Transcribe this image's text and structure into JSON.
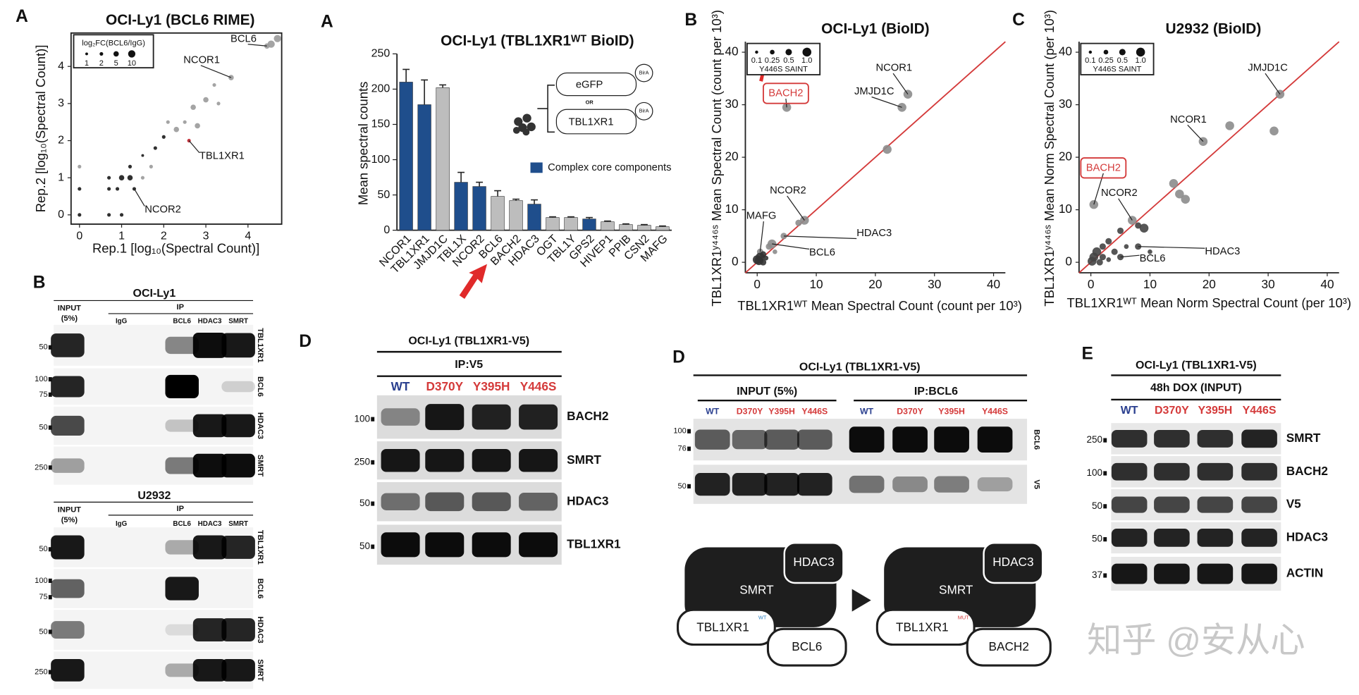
{
  "panel_letters": [
    "A",
    "A",
    "B",
    "C",
    "B",
    "D",
    "D",
    "E"
  ],
  "chart_data": [
    {
      "type": "scatter",
      "title": "OCI-Ly1 (BCL6 RIME)",
      "x_label": "Rep.1 [log₁₀(Spectral Count)]",
      "y_label": "Rep.2 [log₁₀(Spectral Count)]",
      "xlim": [
        -0.2,
        4.8
      ],
      "ylim": [
        -0.25,
        4.9
      ],
      "xticks": [
        0,
        1,
        2,
        3,
        4
      ],
      "yticks": [
        0,
        1,
        2,
        3,
        4
      ],
      "x": [
        4.55,
        4.7,
        4.45,
        3.6,
        2.6,
        3.2,
        3.0,
        2.7,
        2.5,
        2.3,
        2.0,
        1.8,
        1.5,
        1.2,
        1.0,
        1.2,
        0.9,
        1.3,
        0.7,
        0.7,
        0.7,
        0,
        0,
        0,
        1.0,
        1.5,
        2.8,
        3.3,
        2.1,
        1.7
      ],
      "values": [
        4.6,
        4.75,
        4.55,
        3.7,
        2.0,
        3.5,
        3.1,
        2.9,
        2.5,
        2.3,
        2.1,
        1.8,
        1.6,
        1.3,
        1.0,
        1.0,
        0.7,
        0.7,
        1.0,
        0.7,
        0,
        0,
        0.7,
        1.3,
        0,
        1.0,
        2.4,
        3.0,
        2.5,
        1.3
      ],
      "sizes": [
        10,
        10,
        5,
        5,
        2,
        2,
        5,
        5,
        2,
        5,
        2,
        2,
        1,
        2,
        5,
        5,
        2,
        2,
        2,
        2,
        2,
        2,
        2,
        2,
        2,
        2,
        5,
        2,
        2,
        2
      ],
      "point_colors": [
        "#9a9a9a",
        "#9a9a9a",
        "#9a9a9a",
        "#9a9a9a",
        "#c0202a",
        "#9a9a9a",
        "#9a9a9a",
        "#9a9a9a",
        "#9a9a9a",
        "#9a9a9a",
        "#1a1a1a",
        "#1a1a1a",
        "#1a1a1a",
        "#1a1a1a",
        "#1a1a1a",
        "#1a1a1a",
        "#1a1a1a",
        "#1a1a1a",
        "#1a1a1a",
        "#1a1a1a",
        "#1a1a1a",
        "#1a1a1a",
        "#1a1a1a",
        "#9a9a9a",
        "#1a1a1a",
        "#9a9a9a",
        "#9a9a9a",
        "#9a9a9a",
        "#9a9a9a",
        "#9a9a9a"
      ],
      "size_legend": {
        "title": "log₂FC(BCL6/IgG)",
        "values": [
          1,
          2,
          5,
          10
        ]
      },
      "annotations": [
        {
          "text": "BCL6",
          "x": 4.45,
          "y": 4.55,
          "color": "#111111"
        },
        {
          "text": "NCOR1",
          "x": 3.6,
          "y": 3.7,
          "color": "#111111"
        },
        {
          "text": "TBL1XR1",
          "x": 2.6,
          "y": 2.0,
          "color": "#111111"
        },
        {
          "text": "NCOR2",
          "x": 1.3,
          "y": 0.7,
          "color": "#111111"
        }
      ]
    },
    {
      "type": "bar",
      "title": "OCI-Ly1 (TBL1XR1ᵂᵀ BioID)",
      "y_label": "Mean spectral counts",
      "categories": [
        "NCOR1",
        "TBL1XR1",
        "JMJD1C",
        "TBL1X",
        "NCOR2",
        "BCL6",
        "BACH2",
        "HDAC3",
        "OGT",
        "TBL1Y",
        "GPS2",
        "HIVEP1",
        "PPIB",
        "CSN2",
        "MAFG"
      ],
      "values": [
        210,
        178,
        202,
        68,
        62,
        48,
        42,
        37,
        18,
        18,
        16,
        12,
        8,
        7,
        5
      ],
      "errors": [
        18,
        35,
        4,
        14,
        6,
        8,
        2,
        6,
        1,
        1,
        2,
        1,
        1,
        1,
        1
      ],
      "colors": [
        "#1f4e8c",
        "#1f4e8c",
        "#bdbdbd",
        "#1f4e8c",
        "#1f4e8c",
        "#bdbdbd",
        "#bdbdbd",
        "#1f4e8c",
        "#bdbdbd",
        "#bdbdbd",
        "#1f4e8c",
        "#bdbdbd",
        "#bdbdbd",
        "#bdbdbd",
        "#bdbdbd"
      ],
      "ylim": [
        0,
        250
      ],
      "yticks": [
        0,
        50,
        100,
        150,
        200,
        250
      ],
      "legend": {
        "label": "Complex core components",
        "color": "#1f4e8c"
      },
      "inset": {
        "top": "eGFP",
        "or": "OR",
        "bottom": "TBL1XR1",
        "tag": "BirA"
      }
    },
    {
      "type": "scatter",
      "title": "OCI-Ly1 (BioID)",
      "x_label": "TBL1XR1ᵂᵀ Mean Spectral Count (count per 10³)",
      "y_label": "TBL1XR1ʸ⁴⁴⁶ˢ Mean Spectral Count (count per 10³)",
      "xlim": [
        -2,
        42
      ],
      "ylim": [
        -2,
        42
      ],
      "xticks": [
        0,
        10,
        20,
        30,
        40
      ],
      "yticks": [
        0,
        10,
        20,
        30,
        40
      ],
      "diagonal": "#d43a3a",
      "x": [
        25.5,
        24.5,
        5,
        22,
        8,
        4.5,
        2.5,
        0.5,
        0.5,
        1,
        0,
        1.5,
        2,
        0.3,
        1,
        3,
        7
      ],
      "values": [
        32,
        29.5,
        29.5,
        21.5,
        8,
        5,
        3.5,
        2,
        1,
        1.5,
        0.5,
        0.8,
        3,
        0.3,
        0,
        2,
        7.5
      ],
      "sizes": [
        1,
        1,
        1,
        1,
        1,
        0.5,
        1,
        0.5,
        1,
        0.5,
        1,
        0.25,
        0.5,
        1,
        0.5,
        0.25,
        0.5
      ],
      "point_colors": [
        "#8c8c8c",
        "#8c8c8c",
        "#8c8c8c",
        "#8c8c8c",
        "#8c8c8c",
        "#8c8c8c",
        "#8c8c8c",
        "#8c8c8c",
        "#333333",
        "#333333",
        "#333333",
        "#333333",
        "#8c8c8c",
        "#333333",
        "#333333",
        "#8c8c8c",
        "#8c8c8c"
      ],
      "size_legend": {
        "title": "Y446S SAINT",
        "values": [
          0.1,
          0.25,
          0.5,
          {
            "value": 1,
            "label": "1.0"
          }
        ]
      },
      "annotations": [
        {
          "text": "NCOR1",
          "x": 25.5,
          "y": 32,
          "color": "#111111"
        },
        {
          "text": "JMJD1C",
          "x": 24.5,
          "y": 29.5,
          "color": "#111111"
        },
        {
          "text": "BACH2",
          "x": 5,
          "y": 29.5,
          "color": "#d43a3a"
        },
        {
          "text": "NCOR2",
          "x": 8,
          "y": 8,
          "color": "#111111"
        },
        {
          "text": "MAFG",
          "x": 0.5,
          "y": 2,
          "color": "#111111"
        },
        {
          "text": "HDAC3",
          "x": 4.5,
          "y": 5,
          "color": "#111111"
        },
        {
          "text": "BCL6",
          "x": 2.5,
          "y": 3.5,
          "color": "#111111"
        }
      ]
    },
    {
      "type": "scatter",
      "title": "U2932 (BioID)",
      "x_label": "TBL1XR1ᵂᵀ Mean Norm Spectral Count (per 10³)",
      "y_label": "TBL1XR1ʸ⁴⁴⁶ˢ Mean Norm Spectral Count (per 10³)",
      "xlim": [
        -2,
        42
      ],
      "ylim": [
        -2,
        42
      ],
      "xticks": [
        0,
        10,
        20,
        30,
        40
      ],
      "yticks": [
        0,
        10,
        20,
        30,
        40
      ],
      "diagonal": "#d43a3a",
      "x": [
        32,
        31,
        23.5,
        19,
        14,
        15,
        16,
        0.5,
        7,
        8,
        9,
        5,
        3,
        2,
        1,
        0.5,
        2,
        4,
        6,
        8,
        5,
        3,
        0.2,
        1.5,
        10
      ],
      "values": [
        32,
        25,
        26,
        23,
        15,
        13,
        12,
        11,
        8,
        7,
        6.5,
        6,
        4,
        3,
        2,
        1,
        1,
        2,
        3,
        3,
        1,
        0.5,
        0.2,
        0,
        2
      ],
      "sizes": [
        1,
        1,
        1,
        1,
        1,
        1,
        1,
        1,
        1,
        0.5,
        1,
        0.5,
        0.5,
        0.5,
        1,
        1,
        0.5,
        0.5,
        0.25,
        0.5,
        0.5,
        0.25,
        1,
        0.5,
        0.25
      ],
      "point_colors": [
        "#8c8c8c",
        "#8c8c8c",
        "#8c8c8c",
        "#8c8c8c",
        "#8c8c8c",
        "#8c8c8c",
        "#8c8c8c",
        "#8c8c8c",
        "#8c8c8c",
        "#444444",
        "#444444",
        "#444444",
        "#444444",
        "#444444",
        "#444444",
        "#444444",
        "#444444",
        "#444444",
        "#444444",
        "#444444",
        "#444444",
        "#444444",
        "#444444",
        "#444444",
        "#444444"
      ],
      "size_legend": {
        "title": "Y446S SAINT",
        "values": [
          0.1,
          0.25,
          0.5,
          {
            "value": 1,
            "label": "1.0"
          }
        ]
      },
      "annotations": [
        {
          "text": "JMJD1C",
          "x": 32,
          "y": 32,
          "color": "#111111"
        },
        {
          "text": "NCOR1",
          "x": 19,
          "y": 23,
          "color": "#111111"
        },
        {
          "text": "BACH2",
          "x": 0.5,
          "y": 11,
          "color": "#d43a3a"
        },
        {
          "text": "NCOR2",
          "x": 7,
          "y": 8,
          "color": "#111111"
        },
        {
          "text": "HDAC3",
          "x": 8,
          "y": 3,
          "color": "#111111"
        },
        {
          "text": "BCL6",
          "x": 5,
          "y": 1,
          "color": "#111111"
        }
      ]
    }
  ],
  "blots": [
    {
      "title": "OCI-Ly1",
      "input_label": [
        "INPUT",
        "(5%)"
      ],
      "ip_label": "IP",
      "lanes": [
        "IgG",
        "BCL6",
        "HDAC3",
        "SMRT"
      ],
      "rows": [
        {
          "label": "TBL1XR1",
          "markers": [
            "50"
          ]
        },
        {
          "label": "BCL6",
          "markers": [
            "100",
            "75"
          ]
        },
        {
          "label": "HDAC3",
          "markers": [
            "50"
          ]
        },
        {
          "label": "SMRT",
          "markers": [
            "250"
          ]
        }
      ]
    },
    {
      "title": "U2932",
      "input_label": [
        "INPUT",
        "(5%)"
      ],
      "ip_label": "IP",
      "lanes": [
        "IgG",
        "BCL6",
        "HDAC3",
        "SMRT"
      ],
      "rows": [
        {
          "label": "TBL1XR1",
          "markers": [
            "50"
          ]
        },
        {
          "label": "BCL6",
          "markers": [
            "100",
            "75"
          ]
        },
        {
          "label": "HDAC3",
          "markers": [
            "50"
          ]
        },
        {
          "label": "SMRT",
          "markers": [
            "250"
          ]
        }
      ]
    },
    {
      "title": "OCI-Ly1 (TBL1XR1-V5)",
      "ip_label": "IP:V5",
      "lanes": [
        "WT",
        "D370Y",
        "Y395H",
        "Y446S"
      ],
      "lane_colors": [
        "#2a3f8f",
        "#d43a3a",
        "#d43a3a",
        "#d43a3a"
      ],
      "rows": [
        {
          "label": "BACH2",
          "markers": [
            "100"
          ]
        },
        {
          "label": "SMRT",
          "markers": [
            "250"
          ]
        },
        {
          "label": "HDAC3",
          "markers": [
            "50"
          ]
        },
        {
          "label": "TBL1XR1",
          "markers": [
            "50"
          ]
        }
      ]
    },
    {
      "title": "OCI-Ly1 (TBL1XR1-V5)",
      "group_labels": [
        "INPUT (5%)",
        "IP:BCL6"
      ],
      "lanes": [
        "WT",
        "D370Y",
        "Y395H",
        "Y446S",
        "WT",
        "D370Y",
        "Y395H",
        "Y446S"
      ],
      "lane_colors": [
        "#2a3f8f",
        "#d43a3a",
        "#d43a3a",
        "#d43a3a",
        "#2a3f8f",
        "#d43a3a",
        "#d43a3a",
        "#d43a3a"
      ],
      "rows": [
        {
          "label": "BCL6",
          "markers": [
            "100",
            "76"
          ]
        },
        {
          "label": "V5",
          "markers": [
            "50"
          ]
        }
      ]
    },
    {
      "title": "OCI-Ly1 (TBL1XR1-V5)",
      "ip_label": "48h DOX (INPUT)",
      "lanes": [
        "WT",
        "D370Y",
        "Y395H",
        "Y446S"
      ],
      "lane_colors": [
        "#2a3f8f",
        "#d43a3a",
        "#d43a3a",
        "#d43a3a"
      ],
      "rows": [
        {
          "label": "SMRT",
          "markers": [
            "250"
          ]
        },
        {
          "label": "BACH2",
          "markers": [
            "100"
          ]
        },
        {
          "label": "V5",
          "markers": [
            "50"
          ]
        },
        {
          "label": "HDAC3",
          "markers": [
            "50"
          ]
        },
        {
          "label": "ACTIN",
          "markers": [
            "37"
          ]
        }
      ]
    }
  ],
  "diagram": {
    "left": {
      "core": "SMRT",
      "top": "HDAC3",
      "base": "TBL1XR1",
      "base_tag": "WT",
      "partner": "BCL6"
    },
    "right": {
      "core": "SMRT",
      "top": "HDAC3",
      "base": "TBL1XR1",
      "base_tag": "MUT",
      "partner": "BACH2"
    }
  },
  "watermark": "知乎 @安从心"
}
